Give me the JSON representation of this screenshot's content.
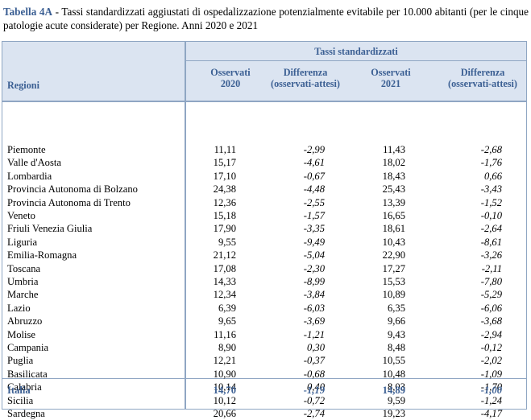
{
  "caption": {
    "label": "Tabella 4A",
    "text": " - Tassi standardizzati aggiustati di ospedalizzazione potenzialmente evitabile per 10.000 abitanti (per le cinque patologie acute considerate) per Regione. Anni 2020 e 2021"
  },
  "header": {
    "group": "Tassi standardizzati",
    "regions": "Regioni",
    "col1": [
      "Osservati",
      "2020"
    ],
    "col2": [
      "Differenza",
      "(osservati-attesi)"
    ],
    "col3": [
      "Osservati",
      "2021"
    ],
    "col4": [
      "Differenza",
      "(osservati-attesi)"
    ]
  },
  "rows": [
    [
      "Piemonte",
      "11,11",
      "-2,99",
      "11,43",
      "-2,68"
    ],
    [
      "Valle d'Aosta",
      "15,17",
      "-4,61",
      "18,02",
      "-1,76"
    ],
    [
      "Lombardia",
      "17,10",
      "-0,67",
      "18,43",
      "0,66"
    ],
    [
      "Provincia Autonoma di Bolzano",
      "24,38",
      "-4,48",
      "25,43",
      "-3,43"
    ],
    [
      "Provincia Autonoma di Trento",
      "12,36",
      "-2,55",
      "13,39",
      "-1,52"
    ],
    [
      "Veneto",
      "15,18",
      "-1,57",
      "16,65",
      "-0,10"
    ],
    [
      "Friuli Venezia Giulia",
      "17,90",
      "-3,35",
      "18,61",
      "-2,64"
    ],
    [
      "Liguria",
      "9,55",
      "-9,49",
      "10,43",
      "-8,61"
    ],
    [
      "Emilia-Romagna",
      "21,12",
      "-5,04",
      "22,90",
      "-3,26"
    ],
    [
      "Toscana",
      "17,08",
      "-2,30",
      "17,27",
      "-2,11"
    ],
    [
      "Umbria",
      "14,33",
      "-8,99",
      "15,53",
      "-7,80"
    ],
    [
      "Marche",
      "12,34",
      "-3,84",
      "10,89",
      "-5,29"
    ],
    [
      "Lazio",
      "6,39",
      "-6,03",
      "6,35",
      "-6,06"
    ],
    [
      "Abruzzo",
      "9,65",
      "-3,69",
      "9,66",
      "-3,68"
    ],
    [
      "Molise",
      "11,16",
      "-1,21",
      "9,43",
      "-2,94"
    ],
    [
      "Campania",
      "8,90",
      "0,30",
      "8,48",
      "-0,12"
    ],
    [
      "Puglia",
      "12,21",
      "-0,37",
      "10,55",
      "-2,02"
    ],
    [
      "Basilicata",
      "10,90",
      "-0,68",
      "10,48",
      "-1,09"
    ],
    [
      "Calabria",
      "10,14",
      "0,40",
      "8,03",
      "-1,70"
    ],
    [
      "Sicilia",
      "10,12",
      "-0,72",
      "9,59",
      "-1,24"
    ],
    [
      "Sardegna",
      "20,66",
      "-2,74",
      "19,23",
      "-4,17"
    ]
  ],
  "total": [
    "Italia",
    "14,70",
    "-1,19",
    "14,89",
    "-1,00"
  ],
  "colors": {
    "accent": "#3b5f93",
    "header_bg": "#dbe4f1",
    "border": "#8fa6c3"
  }
}
